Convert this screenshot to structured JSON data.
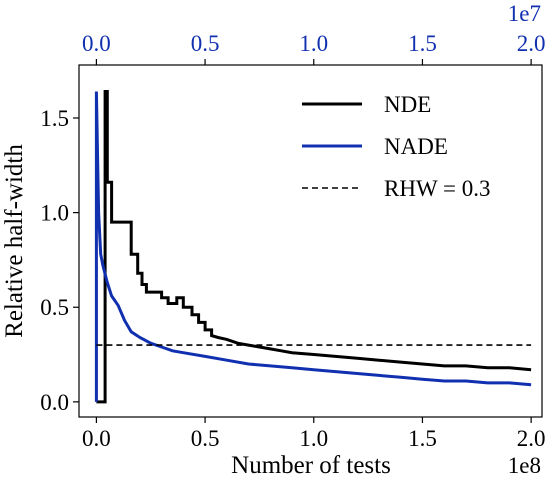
{
  "chart_data": {
    "type": "line",
    "xlabel": "Number of tests",
    "ylabel": "Relative half-width",
    "x_offset_label": "1e8",
    "x_top_offset_label": "1e7",
    "xlim": [
      -0.08,
      2.05
    ],
    "ylim": [
      -0.08,
      1.78
    ],
    "x_ticks": [
      0.0,
      0.5,
      1.0,
      1.5,
      2.0
    ],
    "x_tick_labels": [
      "0.0",
      "0.5",
      "1.0",
      "1.5",
      "2.0"
    ],
    "x_top_ticks": [
      0.0,
      0.5,
      1.0,
      1.5,
      2.0
    ],
    "x_top_tick_labels": [
      "0.0",
      "0.5",
      "1.0",
      "1.5",
      "2.0"
    ],
    "y_ticks": [
      0.0,
      0.5,
      1.0,
      1.5
    ],
    "y_tick_labels": [
      "0.0",
      "0.5",
      "1.0",
      "1.5"
    ],
    "legend_position": "top-right",
    "grid": false,
    "series": [
      {
        "name": "NDE",
        "color": "#000000",
        "style": "solid",
        "axis": "bottom",
        "x": [
          0.0,
          0.04,
          0.04,
          0.05,
          0.05,
          0.07,
          0.07,
          0.09,
          0.09,
          0.16,
          0.16,
          0.19,
          0.19,
          0.21,
          0.21,
          0.23,
          0.23,
          0.25,
          0.25,
          0.3,
          0.3,
          0.33,
          0.33,
          0.37,
          0.37,
          0.4,
          0.4,
          0.44,
          0.44,
          0.47,
          0.47,
          0.5,
          0.5,
          0.53,
          0.53,
          0.56,
          0.6,
          0.65,
          0.7,
          0.75,
          0.8,
          0.85,
          0.9,
          1.0,
          1.1,
          1.2,
          1.3,
          1.4,
          1.5,
          1.6,
          1.7,
          1.8,
          1.9,
          2.0
        ],
        "y": [
          0.0,
          0.0,
          1.64,
          1.64,
          1.16,
          1.16,
          0.95,
          0.95,
          0.95,
          0.95,
          0.78,
          0.78,
          0.68,
          0.68,
          0.62,
          0.62,
          0.58,
          0.58,
          0.58,
          0.58,
          0.55,
          0.55,
          0.52,
          0.52,
          0.55,
          0.55,
          0.5,
          0.5,
          0.46,
          0.46,
          0.42,
          0.42,
          0.38,
          0.38,
          0.35,
          0.34,
          0.33,
          0.31,
          0.3,
          0.29,
          0.28,
          0.27,
          0.26,
          0.25,
          0.24,
          0.23,
          0.22,
          0.21,
          0.2,
          0.19,
          0.19,
          0.18,
          0.18,
          0.17
        ]
      },
      {
        "name": "NADE",
        "color": "#1030b0",
        "style": "solid",
        "axis": "top",
        "x": [
          0.0,
          0.0,
          0.01,
          0.02,
          0.03,
          0.05,
          0.07,
          0.1,
          0.13,
          0.16,
          0.2,
          0.25,
          0.3,
          0.35,
          0.4,
          0.5,
          0.6,
          0.7,
          0.8,
          0.9,
          1.0,
          1.1,
          1.2,
          1.3,
          1.4,
          1.5,
          1.6,
          1.7,
          1.8,
          1.9,
          2.0
        ],
        "y": [
          0.0,
          1.64,
          1.0,
          0.78,
          0.72,
          0.63,
          0.56,
          0.51,
          0.43,
          0.37,
          0.34,
          0.31,
          0.29,
          0.27,
          0.26,
          0.24,
          0.22,
          0.2,
          0.19,
          0.18,
          0.17,
          0.16,
          0.15,
          0.14,
          0.13,
          0.12,
          0.11,
          0.11,
          0.1,
          0.1,
          0.09
        ]
      },
      {
        "name": "RHW = 0.3",
        "color": "#000000",
        "style": "dashed",
        "axis": "bottom",
        "x": [
          0.0,
          2.0
        ],
        "y": [
          0.3,
          0.3
        ]
      }
    ]
  }
}
